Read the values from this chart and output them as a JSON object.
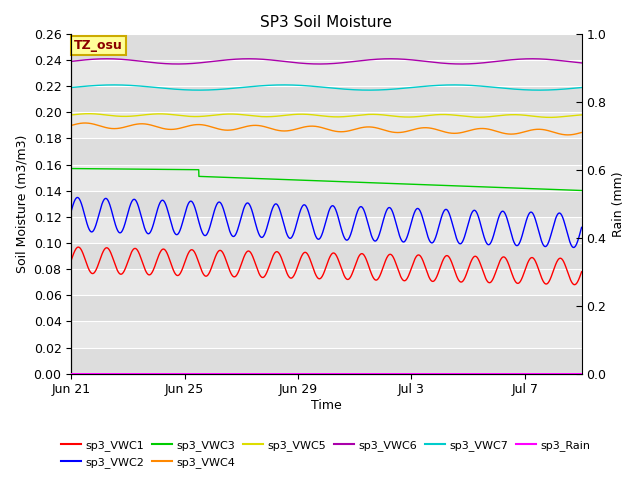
{
  "title": "SP3 Soil Moisture",
  "xlabel": "Time",
  "ylabel_left": "Soil Moisture (m3/m3)",
  "ylabel_right": "Rain (mm)",
  "ylim_left": [
    0.0,
    0.26
  ],
  "ylim_right": [
    0.0,
    1.0
  ],
  "xlim_days": [
    0,
    18
  ],
  "xtick_labels": [
    "Jun 21",
    "Jun 25",
    "Jun 29",
    "Jul 3",
    "Jul 7"
  ],
  "xtick_positions": [
    0,
    4,
    8,
    12,
    16
  ],
  "fig_bg": "#ffffff",
  "plot_bg": "#e8e8e8",
  "annotation_text": "TZ_osu",
  "annotation_bg": "#ffff99",
  "annotation_border": "#ccaa00",
  "series_order": [
    "sp3_VWC1",
    "sp3_VWC2",
    "sp3_VWC3",
    "sp3_VWC4",
    "sp3_VWC5",
    "sp3_VWC6",
    "sp3_VWC7",
    "sp3_Rain"
  ],
  "series_colors": {
    "sp3_VWC1": "#ff0000",
    "sp3_VWC2": "#0000ff",
    "sp3_VWC3": "#00cc00",
    "sp3_VWC4": "#ff8800",
    "sp3_VWC5": "#dddd00",
    "sp3_VWC6": "#aa00aa",
    "sp3_VWC7": "#00cccc",
    "sp3_Rain": "#ff00ff"
  }
}
